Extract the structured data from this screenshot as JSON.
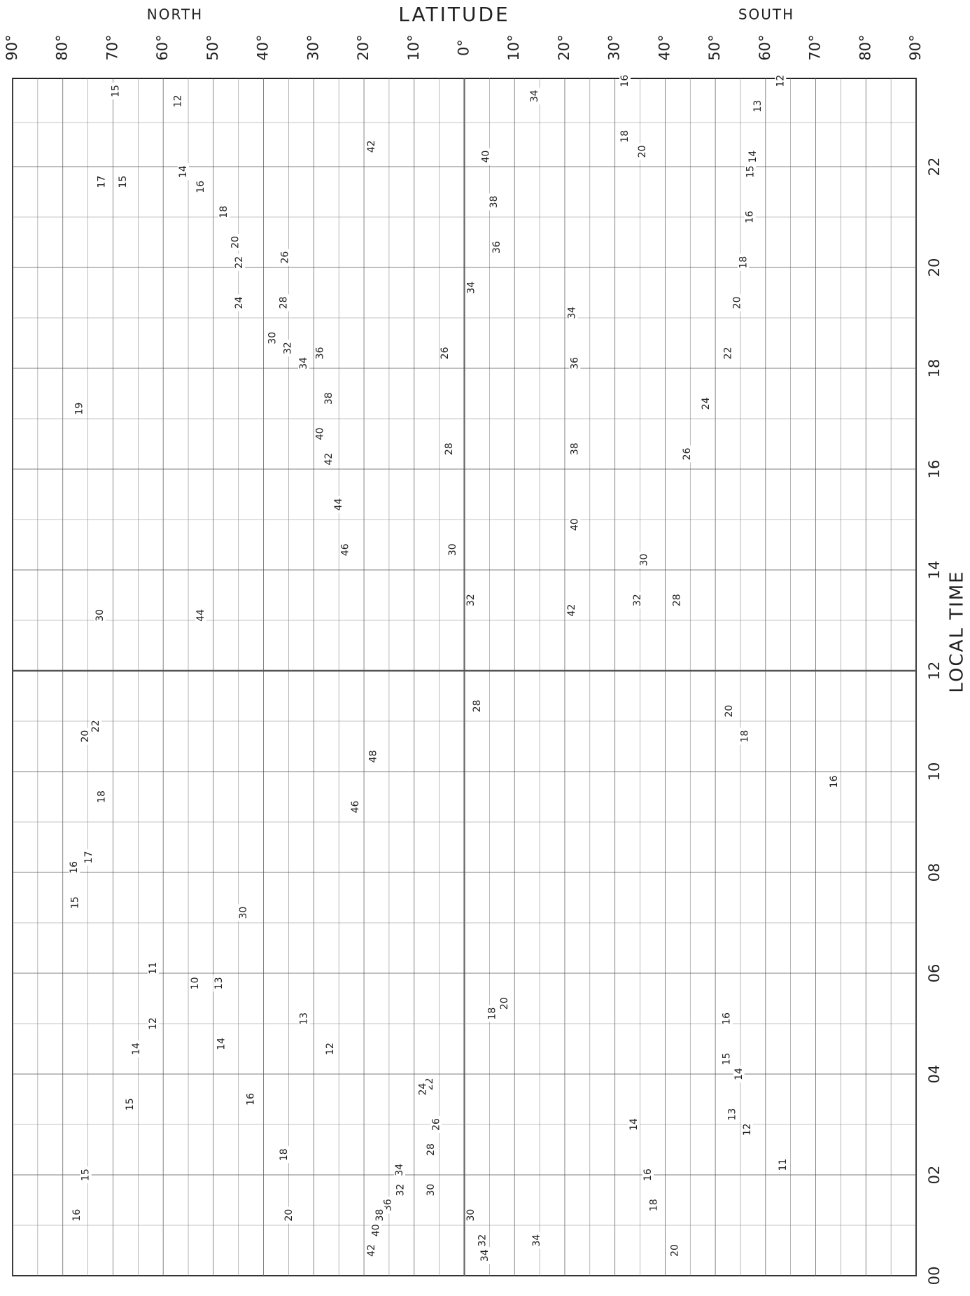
{
  "chart_data": {
    "type": "contour",
    "title": "LATITUDE",
    "north_label": "NORTH",
    "south_label": "SOUTH",
    "y_label": "LOCAL TIME",
    "xlim": [
      90,
      -90
    ],
    "xticks": [
      {
        "value": 90,
        "label": "90°"
      },
      {
        "value": 80,
        "label": "80°"
      },
      {
        "value": 70,
        "label": "70°"
      },
      {
        "value": 60,
        "label": "60°"
      },
      {
        "value": 50,
        "label": "50°"
      },
      {
        "value": 40,
        "label": "40°"
      },
      {
        "value": 30,
        "label": "30°"
      },
      {
        "value": 20,
        "label": "20°"
      },
      {
        "value": 10,
        "label": "10°"
      },
      {
        "value": 0,
        "label": "0°"
      },
      {
        "value": -10,
        "label": "10°"
      },
      {
        "value": -20,
        "label": "20°"
      },
      {
        "value": -30,
        "label": "30°"
      },
      {
        "value": -40,
        "label": "40°"
      },
      {
        "value": -50,
        "label": "50°"
      },
      {
        "value": -60,
        "label": "60°"
      },
      {
        "value": -70,
        "label": "70°"
      },
      {
        "value": -80,
        "label": "80°"
      },
      {
        "value": -90,
        "label": "90°"
      }
    ],
    "ylim": [
      0,
      23.75
    ],
    "yticks": [
      {
        "value": 0,
        "label": "00"
      },
      {
        "value": 2,
        "label": "02"
      },
      {
        "value": 4,
        "label": "04"
      },
      {
        "value": 6,
        "label": "06"
      },
      {
        "value": 8,
        "label": "08"
      },
      {
        "value": 10,
        "label": "10"
      },
      12,
      14,
      16,
      18,
      20,
      22
    ],
    "grid": true,
    "color": "#222222",
    "contour_labels": [
      {
        "value": 15,
        "lat": 69.4,
        "time": 23.5
      },
      {
        "value": 12,
        "lat": 57,
        "time": 23.3
      },
      {
        "value": 42,
        "lat": 18.5,
        "time": 22.4
      },
      {
        "value": 34,
        "lat": -14,
        "time": 23.4
      },
      {
        "value": 16,
        "lat": -32,
        "time": 23.7
      },
      {
        "value": 12,
        "lat": -63,
        "time": 23.7
      },
      {
        "value": 13,
        "lat": -58.5,
        "time": 23.2
      },
      {
        "value": 18,
        "lat": -32,
        "time": 22.6
      },
      {
        "value": 40,
        "lat": -4.3,
        "time": 22.2
      },
      {
        "value": 38,
        "lat": -5.9,
        "time": 21.3
      },
      {
        "value": 36,
        "lat": -6.5,
        "time": 20.4
      },
      {
        "value": 34,
        "lat": -1.4,
        "time": 19.6
      },
      {
        "value": 20,
        "lat": -35.5,
        "time": 22.3
      },
      {
        "value": 14,
        "lat": -57.5,
        "time": 22.2
      },
      {
        "value": 15,
        "lat": -57,
        "time": 21.9
      },
      {
        "value": 16,
        "lat": -56.9,
        "time": 21.0
      },
      {
        "value": 18,
        "lat": -55.6,
        "time": 20.1
      },
      {
        "value": 17,
        "lat": 72.2,
        "time": 21.7
      },
      {
        "value": 15,
        "lat": 68,
        "time": 21.7
      },
      {
        "value": 14,
        "lat": 56,
        "time": 21.9
      },
      {
        "value": 16,
        "lat": 52.5,
        "time": 21.6
      },
      {
        "value": 18,
        "lat": 47.9,
        "time": 21.1
      },
      {
        "value": 20,
        "lat": 45.6,
        "time": 20.5
      },
      {
        "value": 22,
        "lat": 44.8,
        "time": 20.1
      },
      {
        "value": 24,
        "lat": 44.8,
        "time": 19.3
      },
      {
        "value": 26,
        "lat": 35.7,
        "time": 20.2
      },
      {
        "value": 28,
        "lat": 36,
        "time": 19.3
      },
      {
        "value": 30,
        "lat": 38.2,
        "time": 18.6
      },
      {
        "value": 32,
        "lat": 35.1,
        "time": 18.4
      },
      {
        "value": 34,
        "lat": 32,
        "time": 18.1
      },
      {
        "value": 36,
        "lat": 28.7,
        "time": 18.3
      },
      {
        "value": 38,
        "lat": 27,
        "time": 17.4
      },
      {
        "value": 40,
        "lat": 28.7,
        "time": 16.7
      },
      {
        "value": 42,
        "lat": 27,
        "time": 16.2
      },
      {
        "value": 44,
        "lat": 25,
        "time": 15.3
      },
      {
        "value": 46,
        "lat": 23.7,
        "time": 14.4
      },
      {
        "value": 26,
        "lat": 3.8,
        "time": 18.3
      },
      {
        "value": 28,
        "lat": 3,
        "time": 16.4
      },
      {
        "value": 30,
        "lat": 2.3,
        "time": 14.4
      },
      {
        "value": 32,
        "lat": -1.3,
        "time": 13.4
      },
      {
        "value": 34,
        "lat": -21.5,
        "time": 19.1
      },
      {
        "value": 36,
        "lat": -22,
        "time": 18.1
      },
      {
        "value": 38,
        "lat": -22,
        "time": 16.4
      },
      {
        "value": 40,
        "lat": -22,
        "time": 14.9
      },
      {
        "value": 42,
        "lat": -21.4,
        "time": 13.2
      },
      {
        "value": 22,
        "lat": -52.6,
        "time": 18.3
      },
      {
        "value": 20,
        "lat": -54.4,
        "time": 19.3
      },
      {
        "value": 24,
        "lat": -48.2,
        "time": 17.3
      },
      {
        "value": 26,
        "lat": -44.4,
        "time": 16.3
      },
      {
        "value": 30,
        "lat": -35.8,
        "time": 14.2
      },
      {
        "value": 32,
        "lat": -34.5,
        "time": 13.4
      },
      {
        "value": 28,
        "lat": -42.4,
        "time": 13.4
      },
      {
        "value": 19,
        "lat": 76.7,
        "time": 17.2
      },
      {
        "value": 30,
        "lat": 72.6,
        "time": 13.1
      },
      {
        "value": 44,
        "lat": 52.5,
        "time": 13.1
      },
      {
        "value": 20,
        "lat": -52.8,
        "time": 11.2
      },
      {
        "value": 18,
        "lat": -55.9,
        "time": 10.7
      },
      {
        "value": 16,
        "lat": -73.7,
        "time": 9.8
      },
      {
        "value": 20,
        "lat": 75.5,
        "time": 10.7
      },
      {
        "value": 22,
        "lat": 73.4,
        "time": 10.9
      },
      {
        "value": 48,
        "lat": 18.1,
        "time": 10.3
      },
      {
        "value": 46,
        "lat": 21.7,
        "time": 9.3
      },
      {
        "value": 28,
        "lat": -2.6,
        "time": 11.3
      },
      {
        "value": 18,
        "lat": 72.2,
        "time": 9.5
      },
      {
        "value": 17,
        "lat": 74.8,
        "time": 8.3
      },
      {
        "value": 16,
        "lat": 77.7,
        "time": 8.1
      },
      {
        "value": 15,
        "lat": 77.5,
        "time": 7.4
      },
      {
        "value": 30,
        "lat": 44,
        "time": 7.2
      },
      {
        "value": 11,
        "lat": 62,
        "time": 6.1
      },
      {
        "value": 10,
        "lat": 53.6,
        "time": 5.8
      },
      {
        "value": 13,
        "lat": 48.9,
        "time": 5.8
      },
      {
        "value": 12,
        "lat": 62,
        "time": 5.0
      },
      {
        "value": 14,
        "lat": 65.3,
        "time": 4.5
      },
      {
        "value": 14,
        "lat": 48.4,
        "time": 4.6
      },
      {
        "value": 13,
        "lat": 31.9,
        "time": 5.1
      },
      {
        "value": 12,
        "lat": 26.7,
        "time": 4.5
      },
      {
        "value": 16,
        "lat": 42.5,
        "time": 3.5
      },
      {
        "value": 15,
        "lat": 66.6,
        "time": 3.4
      },
      {
        "value": 18,
        "lat": 35.9,
        "time": 2.4
      },
      {
        "value": 20,
        "lat": 34.9,
        "time": 1.2
      },
      {
        "value": 15,
        "lat": 75.4,
        "time": 2.0
      },
      {
        "value": 16,
        "lat": 77.2,
        "time": 1.2
      },
      {
        "value": 18,
        "lat": -5.6,
        "time": 5.2
      },
      {
        "value": 20,
        "lat": -8,
        "time": 5.4
      },
      {
        "value": 22,
        "lat": 6.9,
        "time": 3.8
      },
      {
        "value": 24,
        "lat": 8.2,
        "time": 3.7
      },
      {
        "value": 26,
        "lat": 5.6,
        "time": 3.0
      },
      {
        "value": 28,
        "lat": 6.6,
        "time": 2.5
      },
      {
        "value": 30,
        "lat": 6.6,
        "time": 1.7
      },
      {
        "value": 32,
        "lat": 12.7,
        "time": 1.7
      },
      {
        "value": 34,
        "lat": 12.9,
        "time": 2.1
      },
      {
        "value": 36,
        "lat": 15.2,
        "time": 1.4
      },
      {
        "value": 38,
        "lat": 16.8,
        "time": 1.2
      },
      {
        "value": 40,
        "lat": 17.6,
        "time": 0.9
      },
      {
        "value": 42,
        "lat": 18.5,
        "time": 0.5
      },
      {
        "value": 30,
        "lat": -1.3,
        "time": 1.2
      },
      {
        "value": 32,
        "lat": -3.6,
        "time": 0.7
      },
      {
        "value": 34,
        "lat": -4.1,
        "time": 0.4
      },
      {
        "value": 34,
        "lat": -14.4,
        "time": 0.7
      },
      {
        "value": 14,
        "lat": -33.8,
        "time": 3.0
      },
      {
        "value": 16,
        "lat": -36.6,
        "time": 2.0
      },
      {
        "value": 18,
        "lat": -37.8,
        "time": 1.4
      },
      {
        "value": 20,
        "lat": -42,
        "time": 0.5
      },
      {
        "value": 15,
        "lat": -52.3,
        "time": 4.3
      },
      {
        "value": 14,
        "lat": -54.7,
        "time": 4.0
      },
      {
        "value": 13,
        "lat": -53.4,
        "time": 3.2
      },
      {
        "value": 12,
        "lat": -56.4,
        "time": 2.9
      },
      {
        "value": 11,
        "lat": -63.5,
        "time": 2.2
      },
      {
        "value": 16,
        "lat": -52.3,
        "time": 5.1
      }
    ]
  }
}
